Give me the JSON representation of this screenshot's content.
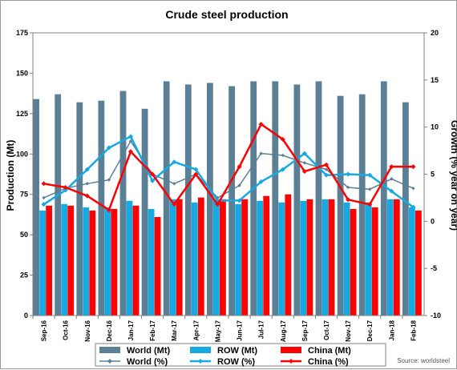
{
  "chart_data": {
    "type": "bar",
    "title": "Crude steel production",
    "ylabel": "Production (Mt)",
    "y2label": "Growth (% year on year)",
    "ylim": [
      0,
      175
    ],
    "y2lim": [
      -10,
      20
    ],
    "yticks": [
      "0",
      "25",
      "50",
      "75",
      "100",
      "125",
      "150",
      "175"
    ],
    "y2ticks": [
      "-10",
      "-5",
      "0",
      "5",
      "10",
      "15",
      "20"
    ],
    "grid": false,
    "legend_position": "bottom",
    "source": "Source: worldsteel",
    "categories": [
      "Sep-16",
      "Oct-16",
      "Nov-16",
      "Dec-16",
      "Jan-17",
      "Feb-17",
      "Mar-17",
      "Apr-17",
      "May-17",
      "Jun-17",
      "Jul-17",
      "Aug-17",
      "Sep-17",
      "Oct-17",
      "Nov-17",
      "Dec-17",
      "Jan-18",
      "Feb-18"
    ],
    "bar_series": [
      {
        "name": "World (Mt)",
        "color": "#5b7f95",
        "values": [
          134,
          137,
          132,
          133,
          139,
          128,
          145,
          143,
          144,
          142,
          145,
          145,
          143,
          145,
          136,
          137,
          145,
          132
        ]
      },
      {
        "name": "ROW (Mt)",
        "color": "#17a9e1",
        "values": [
          65,
          69,
          67,
          67,
          71,
          66,
          72,
          70,
          72,
          69,
          71,
          70,
          71,
          72,
          70,
          70,
          72,
          67
        ]
      },
      {
        "name": "China (Mt)",
        "color": "#ff0000",
        "values": [
          68,
          68,
          65,
          66,
          68,
          61,
          72,
          73,
          72,
          72,
          74,
          75,
          72,
          72,
          66,
          67,
          72,
          65
        ]
      }
    ],
    "line_series": [
      {
        "name": "World (%)",
        "color": "#5b7f95",
        "values": [
          2.5,
          3.5,
          4.0,
          4.4,
          8.5,
          5.0,
          4.0,
          5.0,
          2.5,
          3.8,
          7.2,
          7.0,
          6.2,
          5.5,
          3.6,
          3.4,
          4.5,
          3.5
        ]
      },
      {
        "name": "ROW (%)",
        "color": "#17a9e1",
        "values": [
          1.8,
          3.3,
          5.5,
          7.8,
          9.0,
          4.3,
          6.3,
          5.5,
          2.2,
          2.2,
          4.2,
          5.5,
          7.2,
          4.9,
          5.0,
          4.9,
          3.2,
          1.5
        ]
      },
      {
        "name": "China (%)",
        "color": "#ff0000",
        "values": [
          4.0,
          3.6,
          2.7,
          1.2,
          7.4,
          5.0,
          1.8,
          5.0,
          1.8,
          5.8,
          10.3,
          8.7,
          5.3,
          6.0,
          2.3,
          1.8,
          5.8,
          5.8
        ]
      }
    ]
  }
}
